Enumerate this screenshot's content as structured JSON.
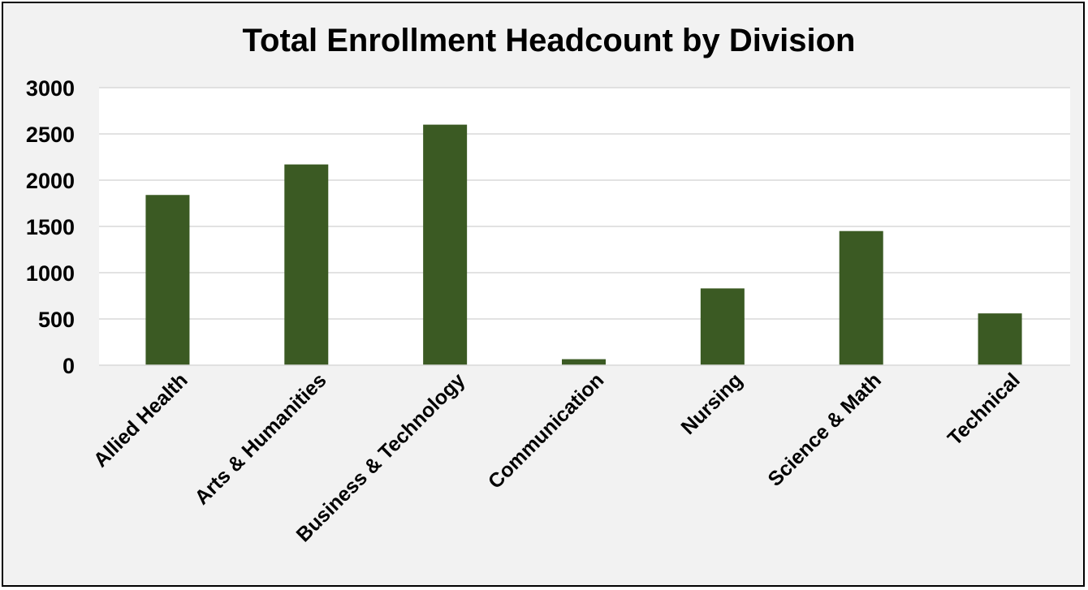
{
  "chart_data": {
    "type": "bar",
    "title": "Total Enrollment Headcount by Division",
    "xlabel": "",
    "ylabel": "",
    "categories": [
      "Allied Health",
      "Arts & Humanities",
      "Business & Technology",
      "Communication",
      "Nursing",
      "Science & Math",
      "Technical"
    ],
    "values": [
      1840,
      2170,
      2600,
      65,
      830,
      1450,
      560
    ],
    "ylim": [
      0,
      3000
    ],
    "yticks": [
      "0",
      "500",
      "1000",
      "1500",
      "2000",
      "2500",
      "3000"
    ],
    "grid": true,
    "legend": "none",
    "bar_color": "#3b5a23",
    "plot_background": "#ffffff",
    "figure_background": "#f2f2f2",
    "gridline_color": "#d9d9d9"
  }
}
